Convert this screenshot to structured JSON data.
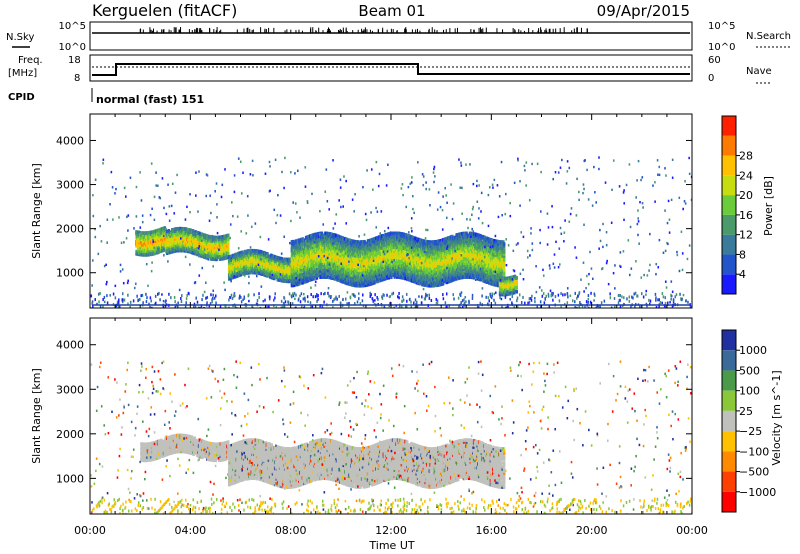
{
  "header": {
    "station": "Kerguelen (fitACF)",
    "beam": "Beam 01",
    "date": "09/Apr/2015"
  },
  "strips": {
    "nsky_label": "N.Sky",
    "nsky_top": "10^5",
    "nsky_bottom": "10^0",
    "nsearch_label": "N.Search",
    "nsearch_top": "10^5",
    "nsearch_bottom": "10^0",
    "freq_label": "Freq.",
    "freq_unit": "[MHz]",
    "freq_ticks": [
      "18",
      "8"
    ],
    "nave_label": "Nave",
    "nave_ticks": [
      "60",
      "0"
    ],
    "cpid_label": "CPID",
    "cpid_text": "normal (fast) 151"
  },
  "chart_data": [
    {
      "type": "heatmap",
      "title": "",
      "xlabel": "",
      "ylabel": "Slant Range [km]",
      "x_ticks": [
        "00:00",
        "04:00",
        "08:00",
        "12:00",
        "16:00",
        "20:00",
        "00:00"
      ],
      "y_ticks": [
        "1000",
        "2000",
        "3000",
        "4000"
      ],
      "xlim_hours": [
        0,
        24
      ],
      "ylim_km": [
        200,
        4600
      ],
      "colorbar": {
        "label": "Power [dB]",
        "ticks": [
          "4",
          "8",
          "12",
          "16",
          "20",
          "24",
          "28"
        ],
        "colors": [
          "#1a1aff",
          "#2255cc",
          "#3a7a9a",
          "#4a9a6a",
          "#6acc3a",
          "#c8dd10",
          "#ffc000",
          "#ff7a00",
          "#ff2000"
        ]
      },
      "bands": [
        {
          "start": 1.8,
          "end": 3.0,
          "range": [
            1500,
            2000
          ],
          "level": 0.9
        },
        {
          "start": 3.0,
          "end": 5.5,
          "range": [
            1400,
            1900
          ],
          "level": 0.85
        },
        {
          "start": 5.5,
          "end": 8.0,
          "range": [
            900,
            1400
          ],
          "level": 0.8
        },
        {
          "start": 8.0,
          "end": 16.5,
          "range": [
            800,
            1800
          ],
          "level": 0.75
        },
        {
          "start": 16.3,
          "end": 17.0,
          "range": [
            600,
            1000
          ],
          "level": 0.8
        }
      ]
    },
    {
      "type": "heatmap",
      "title": "",
      "xlabel": "Time UT",
      "ylabel": "Slant Range [km]",
      "x_ticks": [
        "00:00",
        "04:00",
        "08:00",
        "12:00",
        "16:00",
        "20:00",
        "00:00"
      ],
      "y_ticks": [
        "1000",
        "2000",
        "3000",
        "4000"
      ],
      "xlim_hours": [
        0,
        24
      ],
      "ylim_km": [
        200,
        4600
      ],
      "colorbar": {
        "label": "Velocity [m s^-1]",
        "ticks": [
          "1000",
          "500",
          "100",
          "25",
          "−25",
          "−100",
          "−500",
          "−1000"
        ],
        "colors": [
          "#2030a0",
          "#3a6a9a",
          "#4a9a4a",
          "#8ac83a",
          "#c0c0bc",
          "#ffc000",
          "#ff8a00",
          "#ff4000",
          "#ff0000"
        ]
      },
      "bands": [
        {
          "start": 2.0,
          "end": 5.5,
          "range": [
            1500,
            1900
          ],
          "value": 0
        },
        {
          "start": 5.5,
          "end": 16.5,
          "range": [
            900,
            1800
          ],
          "value": 0
        }
      ]
    }
  ]
}
